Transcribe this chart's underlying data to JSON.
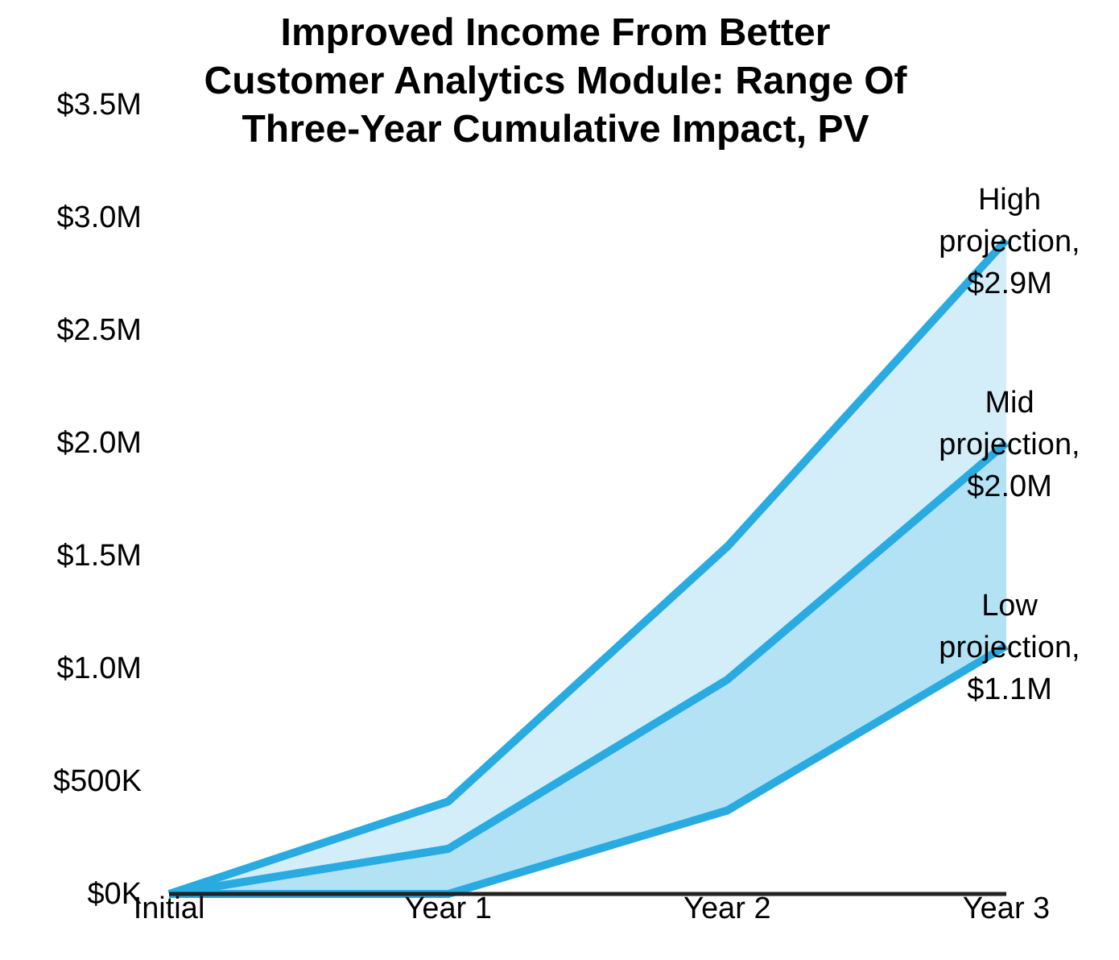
{
  "chart_data": {
    "type": "line",
    "title": "Improved Income From Better Customer Analytics Module: Range Of Three-Year Cumulative Impact, PV",
    "categories": [
      "Initial",
      "Year 1",
      "Year 2",
      "Year 3"
    ],
    "series": [
      {
        "color": "#29abe2",
        "values": [
          0,
          410000,
          1540000,
          2900000
        ],
        "lower": [
          0,
          200000,
          950000,
          2000000
        ],
        "upper": [
          0,
          410000,
          1540000,
          2900000
        ]
      },
      {
        "color": "#29abe2",
        "values": [
          0,
          200000,
          950000,
          2000000
        ],
        "lower": [
          0,
          0,
          370000,
          1100000
        ],
        "upper": [
          0,
          200000,
          950000,
          2000000
        ]
      },
      {
        "color": "#29abe2",
        "values": [
          0,
          0,
          370000,
          1100000
        ]
      }
    ],
    "ylim": [
      0,
      3500000
    ],
    "yticks": [
      {
        "value": 0,
        "label": "$0K"
      },
      {
        "value": 500000,
        "label": "$500K"
      },
      {
        "value": 1000000,
        "label": "$1.0M"
      },
      {
        "value": 1500000,
        "label": "$1.5M"
      },
      {
        "value": 2000000,
        "label": "$2.0M"
      },
      {
        "value": 2500000,
        "label": "$2.5M"
      },
      {
        "value": 3000000,
        "label": "$3.0M"
      },
      {
        "value": 3500000,
        "label": "$3.5M"
      }
    ],
    "grid": false,
    "marker": "none",
    "line_style": "solid",
    "annotations": [
      {
        "text": "High projection, $2.9M",
        "x": "Year 3",
        "y": 2900000
      },
      {
        "text": "Mid projection, $2.0M",
        "x": "Year 3",
        "y": 2000000
      },
      {
        "text": "Low projection, $1.1M",
        "x": "Year 3",
        "y": 1100000
      }
    ]
  }
}
